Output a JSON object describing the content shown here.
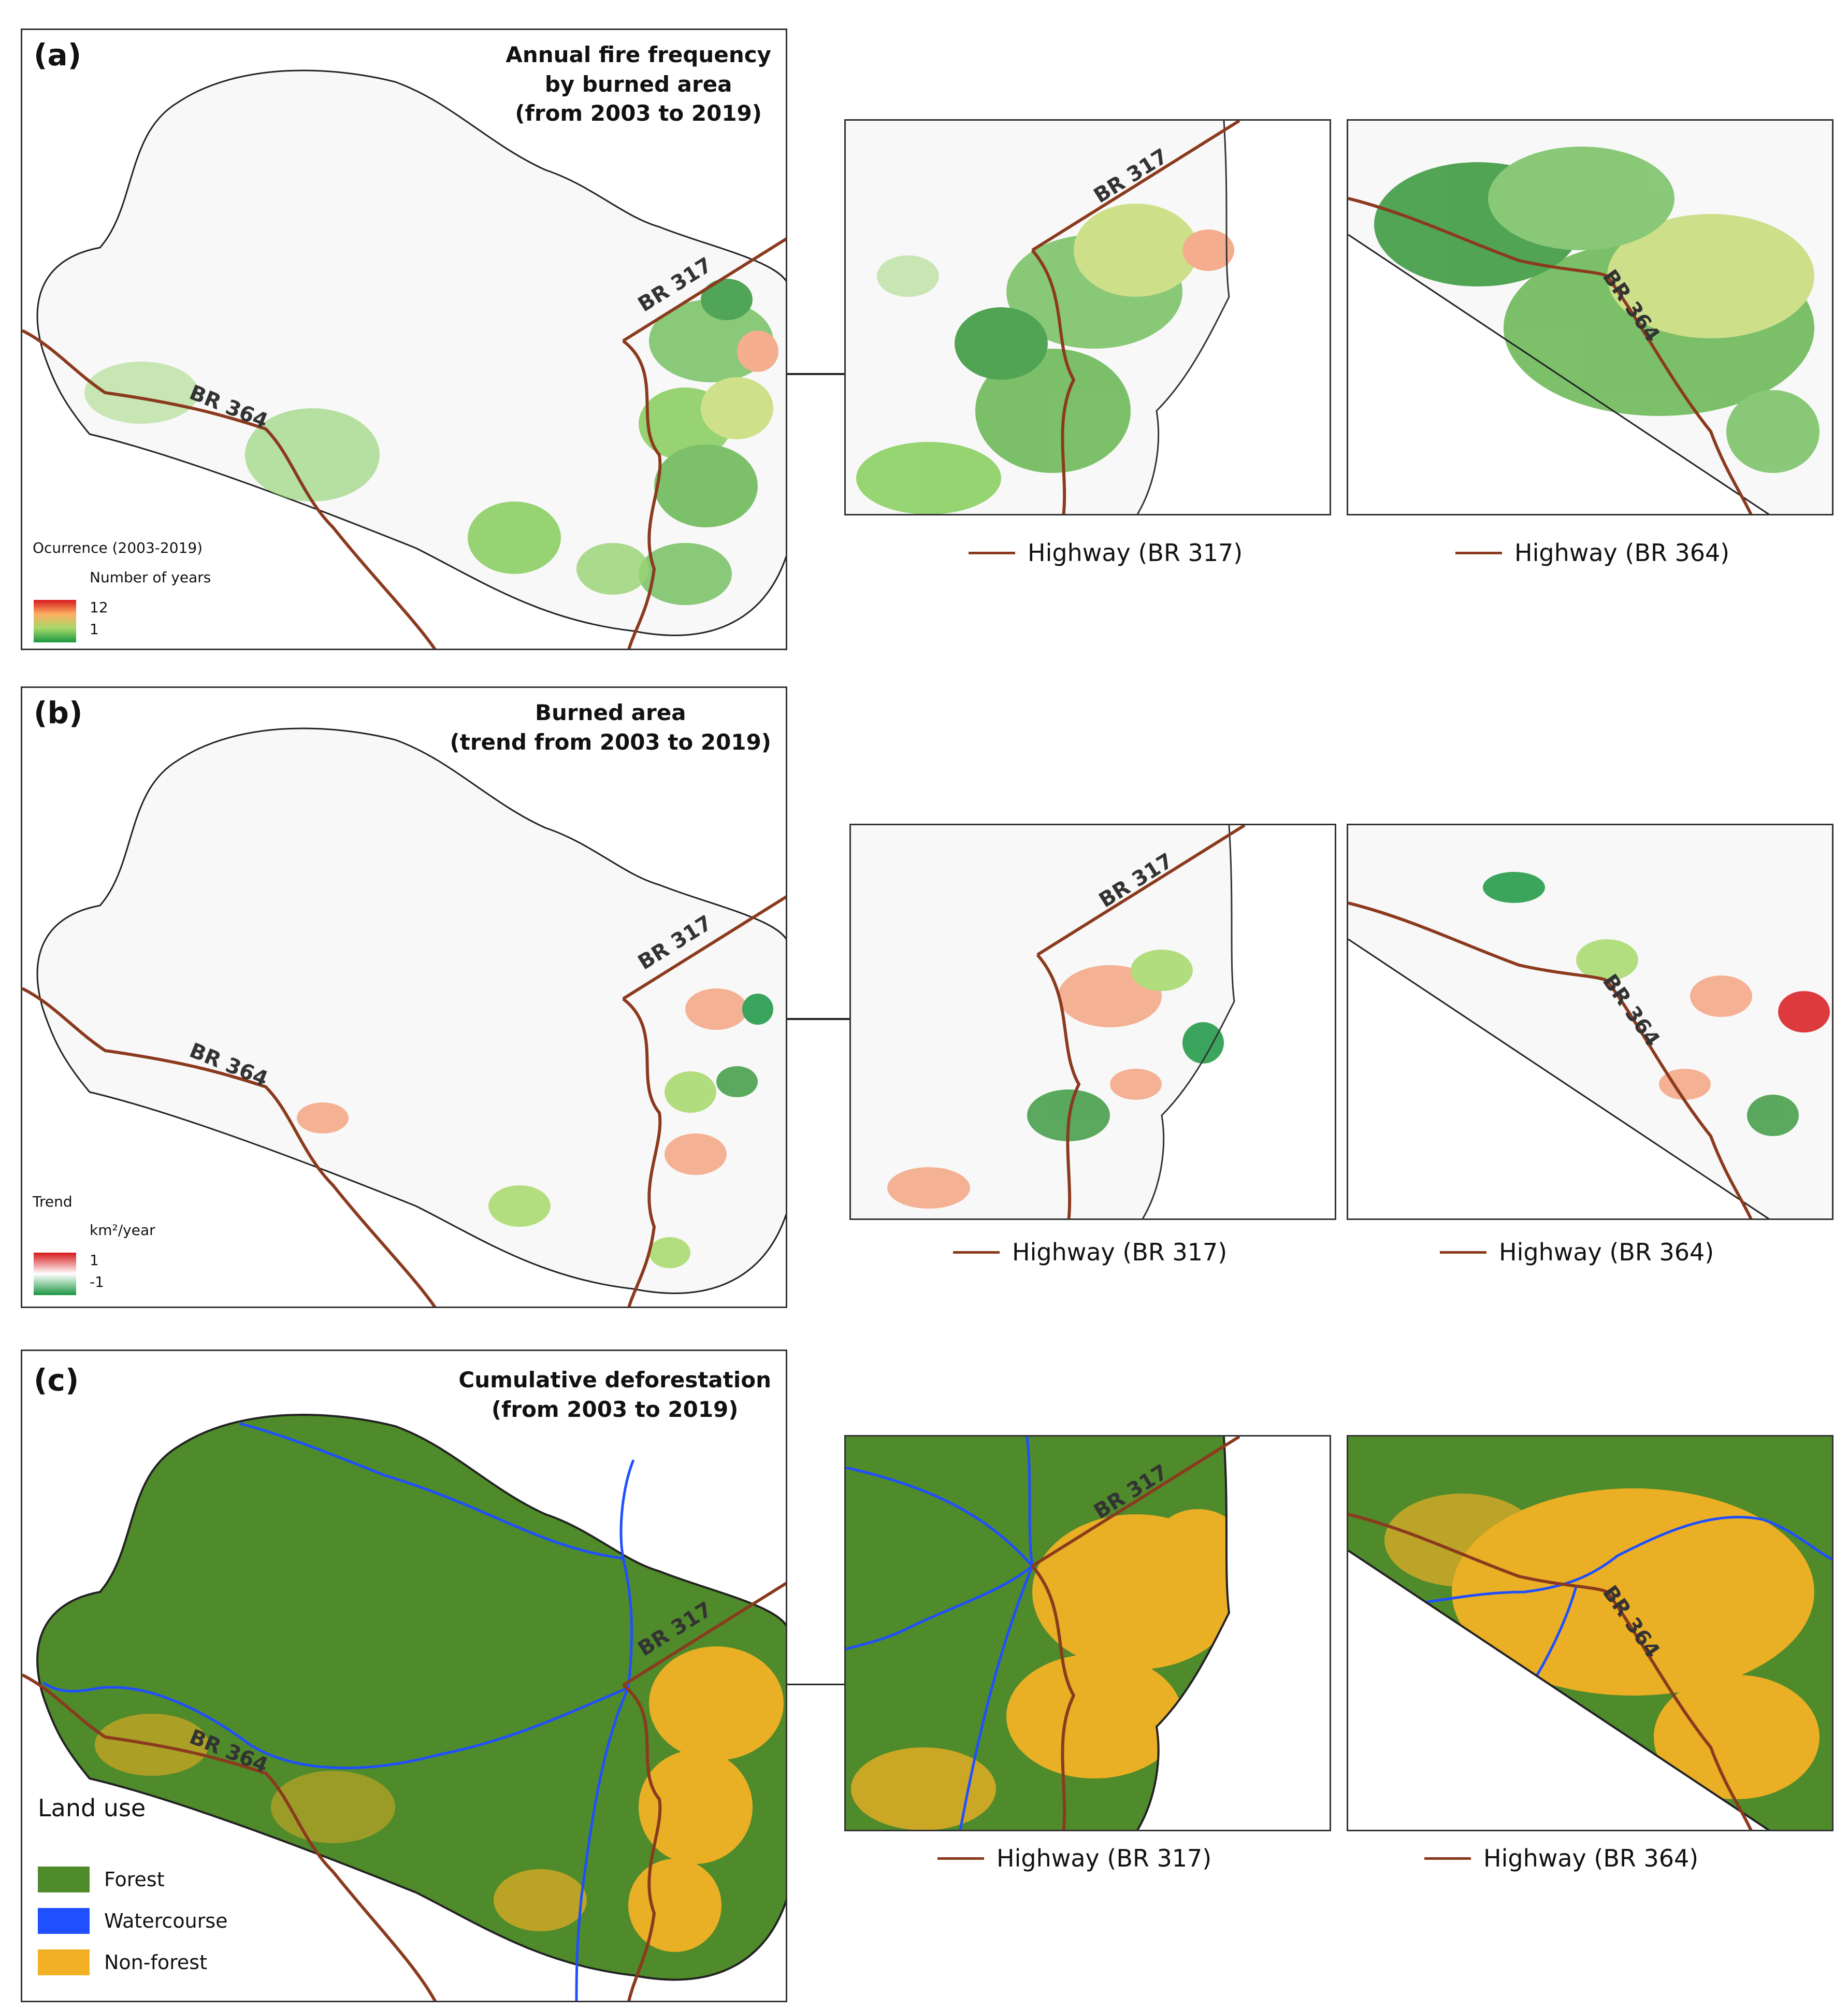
{
  "panels": {
    "a": {
      "label": "(a)",
      "title": [
        "Annual fire frequency",
        "by burned area",
        "(from 2003 to 2019)"
      ],
      "legend_title": "Ocurrence (2003-2019)",
      "legend_subtitle": "Number of years",
      "legend_max": "12",
      "legend_min": "1",
      "gradient_colors": [
        "#d7191c",
        "#fdae61",
        "#a6d96a",
        "#1a9641"
      ]
    },
    "b": {
      "label": "(b)",
      "title": [
        "Burned area",
        "(trend from 2003 to 2019)"
      ],
      "legend_title": "Trend",
      "legend_subtitle": "km²/year",
      "legend_max": "1",
      "legend_min": "-1",
      "gradient_colors": [
        "#d7191c",
        "#ffffff",
        "#1a9641"
      ]
    },
    "c": {
      "label": "(c)",
      "title": [
        "Cumulative deforestation",
        "(from 2003 to 2019)"
      ],
      "legend_title": "Land use",
      "legend_items": [
        {
          "label": "Forest",
          "color": "#4f8a2b"
        },
        {
          "label": "Watercourse",
          "color": "#1f4fff"
        },
        {
          "label": "Non-forest",
          "color": "#f2b125"
        }
      ]
    }
  },
  "roads": {
    "br317": "BR 317",
    "br364": "BR 364"
  },
  "insets": {
    "legend_br317": "Highway (BR 317)",
    "legend_br364": "Highway (BR 364)",
    "highway_color": "#8b3a1e"
  }
}
